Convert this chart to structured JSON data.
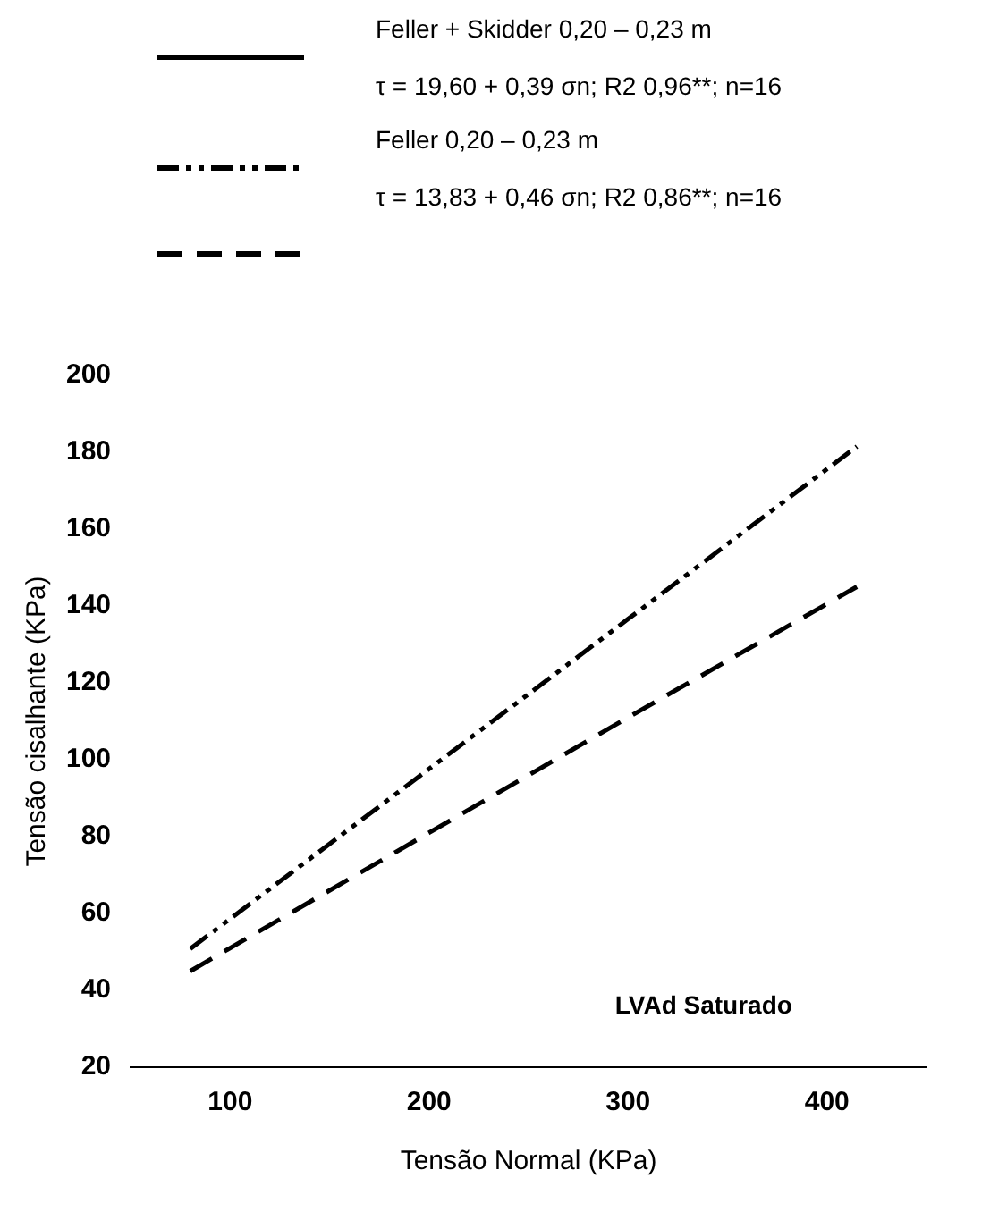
{
  "chart_data": {
    "type": "line",
    "xlabel": "Tensão Normal (KPa)",
    "ylabel": "Tensão cisalhante (KPa)",
    "x": [
      80,
      200,
      300,
      415
    ],
    "series": [
      {
        "name": "Feller + Skidder 0,20 – 0,23 m",
        "color": "#000000",
        "line_style": "solid",
        "values": [
          null,
          null,
          null,
          null
        ]
      },
      {
        "name": "Feller 0,20 – 0,23 m",
        "color": "#000000",
        "line_style": "dashdot",
        "values": [
          50.8,
          97.6,
          136.6,
          181.5
        ]
      },
      {
        "color": "#000000",
        "line_style": "dashed",
        "values": [
          45,
          81,
          111,
          145
        ]
      }
    ],
    "annotations": [
      "τ = 19,60 + 0,39 σn; R2 0,96**; n=16",
      "τ = 13,83 + 0,46 σn; R2 0,86**; n=16",
      "LVAd Saturado"
    ],
    "xlim": [
      50,
      450
    ],
    "xticks": [
      100,
      200,
      300,
      400
    ],
    "ylim": [
      20,
      200
    ],
    "yticks": [
      20,
      40,
      60,
      80,
      100,
      120,
      140,
      160,
      180,
      200
    ],
    "grid": false,
    "legend": "top",
    "marker": "none"
  }
}
